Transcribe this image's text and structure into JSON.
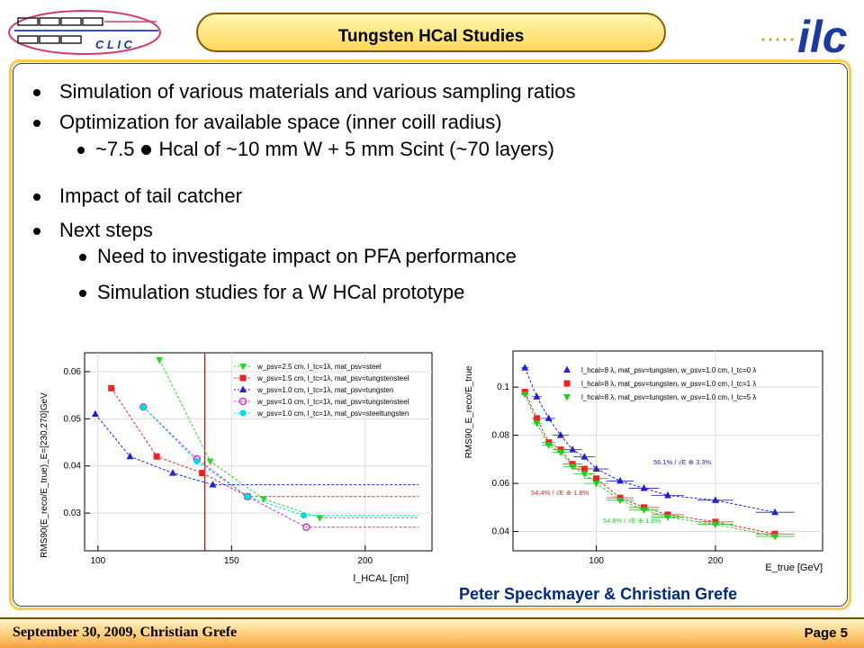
{
  "header": {
    "title": "Tungsten HCal Studies",
    "left_logo_text": "C L I C",
    "right_logo_text": "ilc"
  },
  "bullets": {
    "b1": "Simulation of various materials and various sampling ratios",
    "b2": "Optimization for available space (inner coill radius)",
    "b2_sub_a": "~7.5",
    "b2_sub_b": "Hcal of ~10 mm W + 5 mm Scint (~70 layers)",
    "b3": "Impact of tail catcher",
    "b4": "Next steps",
    "b4_sub1": "Need to investigate impact on PFA performance",
    "b4_sub2": "Simulation studies for a W HCal prototype"
  },
  "credits": "Peter Speckmayer & Christian Grefe",
  "footer": {
    "left": "September 30, 2009, Christian Grefe",
    "right": "Page 5"
  },
  "chart_data": [
    {
      "type": "line",
      "xlabel": "l_HCAL [cm]",
      "ylabel": "RMS90(E_reco/E_true)_E=[230,270]GeV",
      "xlim": [
        95,
        225
      ],
      "ylim": [
        0.022,
        0.064
      ],
      "xticks": [
        100,
        150,
        200
      ],
      "yticks": [
        0.03,
        0.04,
        0.05,
        0.06
      ],
      "xtick_labels": [
        "100",
        "150",
        "200"
      ],
      "ytick_labels": [
        "0.03",
        "0.04",
        "0.05",
        "0.06"
      ],
      "vline": 140,
      "legend_position": "top-right",
      "grid": true,
      "series": [
        {
          "name": "w_psv=2.5 cm, l_tc=1λ, mat_psv=steel",
          "color": "#22dd22",
          "marker": "tri-down",
          "x": [
            123,
            142,
            162,
            183,
            220
          ],
          "y": [
            0.0625,
            0.041,
            0.033,
            0.029,
            0.029
          ]
        },
        {
          "name": "w_psv=1.5 cm, l_tc=1λ, mat_psv=tungstensteel",
          "color": "#ee2222",
          "marker": "square",
          "x": [
            105,
            122,
            139,
            156,
            220
          ],
          "y": [
            0.0565,
            0.042,
            0.0385,
            0.0335,
            0.0335
          ]
        },
        {
          "name": "w_psv=1.0 cm, l_tc=1λ, mat_psv=tungsten",
          "color": "#2222cc",
          "marker": "tri-up",
          "x": [
            99,
            112,
            128,
            143,
            220
          ],
          "y": [
            0.051,
            0.042,
            0.0385,
            0.036,
            0.036
          ]
        },
        {
          "name": "w_psv=1.0 cm, l_tc=1λ, mat_psv=tungstensteel",
          "color": "#cc33cc",
          "marker": "circle-open",
          "x": [
            117,
            137,
            156,
            178,
            220
          ],
          "y": [
            0.0525,
            0.0415,
            0.0335,
            0.027,
            0.027
          ]
        },
        {
          "name": "w_psv=1.0 cm, l_tc=1λ, mat_psv=steeltungsten",
          "color": "#00dddd",
          "marker": "circle",
          "x": [
            117,
            137,
            156,
            177,
            220
          ],
          "y": [
            0.0525,
            0.041,
            0.0335,
            0.0295,
            0.0295
          ]
        }
      ]
    },
    {
      "type": "scatter",
      "xlabel": "E_true [GeV]",
      "ylabel": "RMS90_E_reco/E_true",
      "xlim": [
        30,
        290
      ],
      "ylim": [
        0.032,
        0.115
      ],
      "xticks": [
        100,
        200
      ],
      "yticks": [
        0.04,
        0.06,
        0.08,
        0.1
      ],
      "xtick_labels": [
        "100",
        "200"
      ],
      "ytick_labels": [
        "0.04",
        "0.06",
        "0.08",
        "0.1"
      ],
      "legend_position": "top-right",
      "annotations": [
        {
          "label": "56.1% / √E ⊕ 3.3%",
          "color": "#2222cc"
        },
        {
          "label": "54.4% / √E ⊕ 1.8%",
          "color": "#ee2222"
        },
        {
          "label": "54.8% / √E ⊕ 1.6%",
          "color": "#22cc22"
        }
      ],
      "series": [
        {
          "name": "l_hcal=8 λ, mat_psv=tungsten, w_psv=1.0 cm, l_tc=0 λ",
          "color": "#2222cc",
          "marker": "tri-up",
          "x": [
            40,
            50,
            60,
            70,
            80,
            90,
            100,
            120,
            140,
            160,
            200,
            250
          ],
          "y": [
            0.108,
            0.096,
            0.087,
            0.08,
            0.074,
            0.071,
            0.066,
            0.061,
            0.058,
            0.055,
            0.053,
            0.048
          ]
        },
        {
          "name": "l_hcal=8 λ, mat_psv=tungsten, w_psv=1.0 cm, l_tc=1 λ",
          "color": "#ee2222",
          "marker": "square",
          "x": [
            40,
            50,
            60,
            70,
            80,
            90,
            100,
            120,
            140,
            160,
            200,
            250
          ],
          "y": [
            0.098,
            0.087,
            0.077,
            0.074,
            0.068,
            0.066,
            0.062,
            0.054,
            0.05,
            0.047,
            0.044,
            0.039
          ]
        },
        {
          "name": "l_hcal=8 λ, mat_psv=tungsten, w_psv=1.0 cm, l_tc=5 λ",
          "color": "#22cc22",
          "marker": "tri-down",
          "x": [
            40,
            50,
            60,
            70,
            80,
            90,
            100,
            120,
            140,
            160,
            200,
            250
          ],
          "y": [
            0.097,
            0.085,
            0.076,
            0.073,
            0.067,
            0.064,
            0.06,
            0.053,
            0.049,
            0.046,
            0.043,
            0.038
          ]
        }
      ]
    }
  ]
}
